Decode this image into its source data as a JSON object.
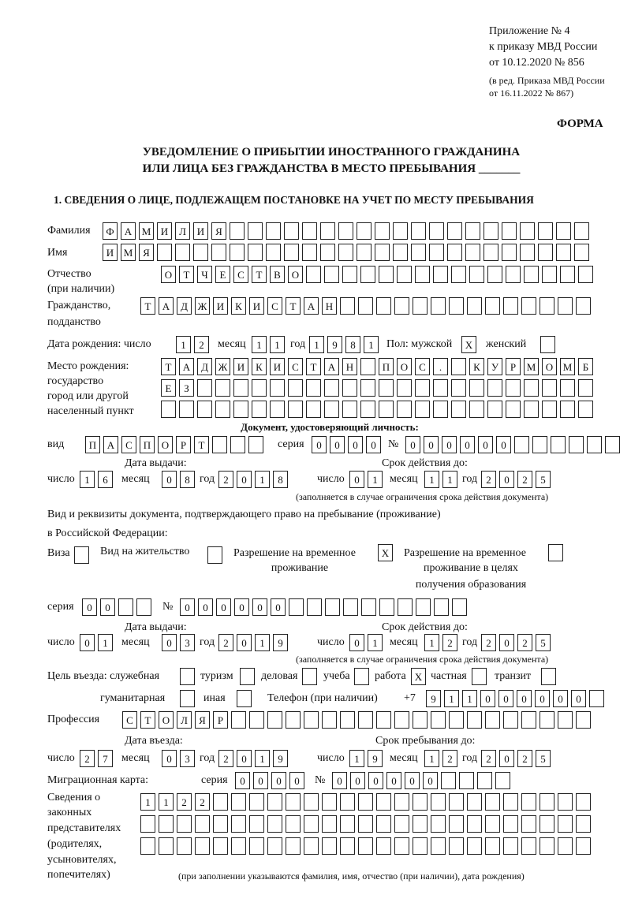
{
  "header": {
    "line1": "Приложение № 4",
    "line2": "к приказу МВД России",
    "line3": "от 10.12.2020 № 856",
    "line4": "(в ред. Приказа МВД России",
    "line5": "от 16.11.2022 № 867)",
    "form_label": "ФОРМА",
    "title1": "УВЕДОМЛЕНИЕ О ПРИБЫТИИ ИНОСТРАННОГО ГРАЖДАНИНА",
    "title2": "ИЛИ ЛИЦА БЕЗ ГРАЖДАНСТВА В МЕСТО ПРЕБЫВАНИЯ _______"
  },
  "section1": {
    "heading": "1. СВЕДЕНИЯ О ЛИЦЕ, ПОДЛЕЖАЩЕМ ПОСТАНОВКЕ НА УЧЕТ ПО МЕСТУ ПРЕБЫВАНИЯ",
    "surname_label": "Фамилия",
    "surname": [
      "Ф",
      "А",
      "М",
      "И",
      "Л",
      "И",
      "Я",
      "",
      "",
      "",
      "",
      "",
      "",
      "",
      "",
      "",
      "",
      "",
      "",
      "",
      "",
      "",
      "",
      "",
      "",
      "",
      ""
    ],
    "name_label": "Имя",
    "name": [
      "И",
      "М",
      "Я",
      "",
      "",
      "",
      "",
      "",
      "",
      "",
      "",
      "",
      "",
      "",
      "",
      "",
      "",
      "",
      "",
      "",
      "",
      "",
      "",
      "",
      "",
      "",
      ""
    ],
    "patronymic_label": "Отчество",
    "patronymic_label2": "(при наличии)",
    "patronymic": [
      "О",
      "Т",
      "Ч",
      "Е",
      "С",
      "Т",
      "В",
      "О",
      "",
      "",
      "",
      "",
      "",
      "",
      "",
      "",
      "",
      "",
      "",
      "",
      "",
      "",
      "",
      ""
    ],
    "citizenship_label": "Гражданство,",
    "citizenship_label2": "подданство",
    "citizenship": [
      "Т",
      "А",
      "Д",
      "Ж",
      "И",
      "К",
      "И",
      "С",
      "Т",
      "А",
      "Н",
      "",
      "",
      "",
      "",
      "",
      "",
      "",
      "",
      "",
      "",
      "",
      "",
      "",
      ""
    ],
    "birth": {
      "label": "Дата рождения:  число",
      "day": [
        "1",
        "2"
      ],
      "month_label": "месяц",
      "month": [
        "1",
        "1"
      ],
      "year_label": "год",
      "year": [
        "1",
        "9",
        "8",
        "1"
      ],
      "sex_label": "Пол: мужской",
      "male": [
        "X"
      ],
      "female_label": "женский",
      "female": [
        ""
      ]
    },
    "birthplace": {
      "label1": "Место рождения:",
      "label2": "государство",
      "label3": "город или другой",
      "label4": "населенный пункт",
      "row1": [
        "Т",
        "А",
        "Д",
        "Ж",
        "И",
        "К",
        "И",
        "С",
        "Т",
        "А",
        "Н",
        "",
        "П",
        "О",
        "С",
        ".",
        "",
        "К",
        "У",
        "Р",
        "М",
        "О",
        "М",
        "Б"
      ],
      "row2": [
        "Е",
        "З",
        "",
        "",
        "",
        "",
        "",
        "",
        "",
        "",
        "",
        "",
        "",
        "",
        "",
        "",
        "",
        "",
        "",
        "",
        "",
        "",
        "",
        ""
      ],
      "row3": [
        "",
        "",
        "",
        "",
        "",
        "",
        "",
        "",
        "",
        "",
        "",
        "",
        "",
        "",
        "",
        "",
        "",
        "",
        "",
        "",
        "",
        "",
        "",
        ""
      ]
    },
    "id_doc": {
      "heading": "Документ, удостоверяющий личность:",
      "kind_label": "вид",
      "kind": [
        "П",
        "А",
        "С",
        "П",
        "О",
        "Р",
        "Т",
        "",
        "",
        ""
      ],
      "series_label": "серия",
      "series": [
        "0",
        "0",
        "0",
        "0"
      ],
      "number_label": "№",
      "number": [
        "0",
        "0",
        "0",
        "0",
        "0",
        "0",
        "",
        "",
        "",
        "",
        "",
        ""
      ],
      "issue_label": "Дата выдачи:",
      "valid_label": "Срок действия до:",
      "day_label": "число",
      "month_label": "месяц",
      "year_label": "год",
      "issue_day": [
        "1",
        "6"
      ],
      "issue_month": [
        "0",
        "8"
      ],
      "issue_year": [
        "2",
        "0",
        "1",
        "8"
      ],
      "valid_day": [
        "0",
        "1"
      ],
      "valid_month": [
        "1",
        "1"
      ],
      "valid_year": [
        "2",
        "0",
        "2",
        "5"
      ],
      "note": "(заполняется в случае ограничения срока действия документа)"
    },
    "right_doc": {
      "label1": "Вид и реквизиты документа, подтверждающего право на пребывание (проживание)",
      "label2": "в Российской Федерации:",
      "visa_label": "Виза",
      "visa": [
        ""
      ],
      "residence_label": "Вид на жительство",
      "residence": [
        ""
      ],
      "temp_label1": "Разрешение на временное",
      "temp_label2": "проживание",
      "temp": [
        "X"
      ],
      "edu_label1": "Разрешение на временное",
      "edu_label2": "проживание в целях",
      "edu_label3": "получения образования",
      "edu": [
        ""
      ],
      "series_label": "серия",
      "series": [
        "0",
        "0",
        "",
        ""
      ],
      "number_label": "№",
      "number": [
        "0",
        "0",
        "0",
        "0",
        "0",
        "0",
        "",
        "",
        "",
        "",
        "",
        "",
        "",
        "",
        "",
        ""
      ],
      "issue_label": "Дата выдачи:",
      "valid_label": "Срок действия до:",
      "day_label": "число",
      "month_label": "месяц",
      "year_label": "год",
      "issue_day": [
        "0",
        "1"
      ],
      "issue_month": [
        "0",
        "3"
      ],
      "issue_year": [
        "2",
        "0",
        "1",
        "9"
      ],
      "valid_day": [
        "0",
        "1"
      ],
      "valid_month": [
        "1",
        "2"
      ],
      "valid_year": [
        "2",
        "0",
        "2",
        "5"
      ],
      "note": "(заполняется в случае ограничения срока действия документа)"
    },
    "purpose": {
      "label": "Цель въезда: служебная",
      "official": [
        ""
      ],
      "tourism_label": "туризм",
      "tourism": [
        ""
      ],
      "business_label": "деловая",
      "business": [
        ""
      ],
      "study_label": "учеба",
      "study": [
        ""
      ],
      "work_label": "работа",
      "work": [
        "X"
      ],
      "private_label": "частная",
      "private": [
        ""
      ],
      "transit_label": "транзит",
      "transit": [
        ""
      ],
      "humanitarian_label": "гуманитарная",
      "humanitarian": [
        ""
      ],
      "other_label": "иная",
      "other": [
        ""
      ]
    },
    "phone": {
      "label": "Телефон (при наличии)",
      "prefix": "+7",
      "digits": [
        "9",
        "1",
        "1",
        "0",
        "0",
        "0",
        "0",
        "0",
        "0",
        ""
      ]
    },
    "profession_label": "Профессия",
    "profession": [
      "С",
      "Т",
      "О",
      "Л",
      "Я",
      "Р",
      "",
      "",
      "",
      "",
      "",
      "",
      "",
      "",
      "",
      "",
      "",
      "",
      "",
      "",
      "",
      "",
      "",
      "",
      "",
      ""
    ],
    "entry": {
      "entry_label": "Дата въезда:",
      "stay_label": "Срок пребывания до:",
      "day_label": "число",
      "month_label": "месяц",
      "year_label": "год",
      "entry_day": [
        "2",
        "7"
      ],
      "entry_month": [
        "0",
        "3"
      ],
      "entry_year": [
        "2",
        "0",
        "1",
        "9"
      ],
      "stay_day": [
        "1",
        "9"
      ],
      "stay_month": [
        "1",
        "2"
      ],
      "stay_year": [
        "2",
        "0",
        "2",
        "5"
      ]
    },
    "migration_card": {
      "label": "Миграционная карта:",
      "series_label": "серия",
      "series": [
        "0",
        "0",
        "0",
        "0"
      ],
      "number_label": "№",
      "number": [
        "0",
        "0",
        "0",
        "0",
        "0",
        "0",
        "",
        "",
        "",
        ""
      ]
    },
    "representatives": {
      "label1": "Сведения о",
      "label2": "законных",
      "label3": "представителях",
      "label4": "(родителях,",
      "label5": "усыновителях,",
      "label6": "попечителях)",
      "row1": [
        "1",
        "1",
        "2",
        "2",
        "",
        "",
        "",
        "",
        "",
        "",
        "",
        "",
        "",
        "",
        "",
        "",
        "",
        "",
        "",
        "",
        "",
        "",
        "",
        "",
        ""
      ],
      "row2": [
        "",
        "",
        "",
        "",
        "",
        "",
        "",
        "",
        "",
        "",
        "",
        "",
        "",
        "",
        "",
        "",
        "",
        "",
        "",
        "",
        "",
        "",
        "",
        "",
        ""
      ],
      "row3": [
        "",
        "",
        "",
        "",
        "",
        "",
        "",
        "",
        "",
        "",
        "",
        "",
        "",
        "",
        "",
        "",
        "",
        "",
        "",
        "",
        "",
        "",
        "",
        "",
        ""
      ],
      "note": "(при заполнении указываются фамилия, имя, отчество (при наличии), дата рождения)"
    }
  }
}
